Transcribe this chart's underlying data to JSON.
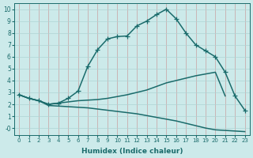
{
  "xlabel": "Humidex (Indice chaleur)",
  "bg_color": "#cceaea",
  "grid_color": "#aed4d4",
  "line_color": "#1a6b6b",
  "xlim": [
    -0.5,
    23.5
  ],
  "ylim": [
    -0.6,
    10.5
  ],
  "xticks": [
    0,
    1,
    2,
    3,
    4,
    5,
    6,
    7,
    8,
    9,
    10,
    11,
    12,
    13,
    14,
    15,
    16,
    17,
    18,
    19,
    20,
    21,
    22,
    23
  ],
  "yticks": [
    0,
    1,
    2,
    3,
    4,
    5,
    6,
    7,
    8,
    9,
    10
  ],
  "ytick_labels": [
    "-0",
    "1",
    "2",
    "3",
    "4",
    "5",
    "6",
    "7",
    "8",
    "9",
    "10"
  ],
  "line_peak_x": [
    0,
    1,
    2,
    3,
    4,
    5,
    6,
    7,
    8,
    9,
    10,
    11,
    12,
    13,
    14,
    15,
    16,
    17,
    18,
    19,
    20,
    21,
    22,
    23
  ],
  "line_peak_y": [
    2.8,
    2.5,
    2.3,
    2.0,
    2.1,
    2.5,
    3.1,
    5.2,
    6.6,
    7.5,
    7.7,
    7.75,
    8.6,
    9.0,
    9.55,
    10.0,
    9.2,
    8.0,
    7.0,
    6.5,
    6.0,
    4.7,
    2.7,
    1.5
  ],
  "line_mid_x": [
    0,
    1,
    2,
    3,
    4,
    5,
    6,
    7,
    8,
    9,
    10,
    11,
    12,
    13,
    14,
    15,
    16,
    17,
    18,
    19,
    20,
    21
  ],
  "line_mid_y": [
    2.8,
    2.5,
    2.3,
    2.0,
    2.1,
    2.2,
    2.3,
    2.35,
    2.4,
    2.5,
    2.65,
    2.8,
    3.0,
    3.2,
    3.5,
    3.8,
    4.0,
    4.2,
    4.4,
    4.55,
    4.7,
    2.7
  ],
  "line_low_x": [
    0,
    1,
    2,
    3,
    4,
    5,
    6,
    7,
    8,
    9,
    10,
    11,
    12,
    13,
    14,
    15,
    16,
    17,
    18,
    19,
    20,
    21,
    22,
    23
  ],
  "line_low_y": [
    2.8,
    2.5,
    2.3,
    1.9,
    1.85,
    1.8,
    1.75,
    1.7,
    1.6,
    1.5,
    1.4,
    1.3,
    1.2,
    1.05,
    0.9,
    0.75,
    0.6,
    0.4,
    0.2,
    0.0,
    -0.15,
    -0.2,
    -0.25,
    -0.3
  ],
  "marker": "+",
  "markersize": 4,
  "linewidth": 1.1
}
